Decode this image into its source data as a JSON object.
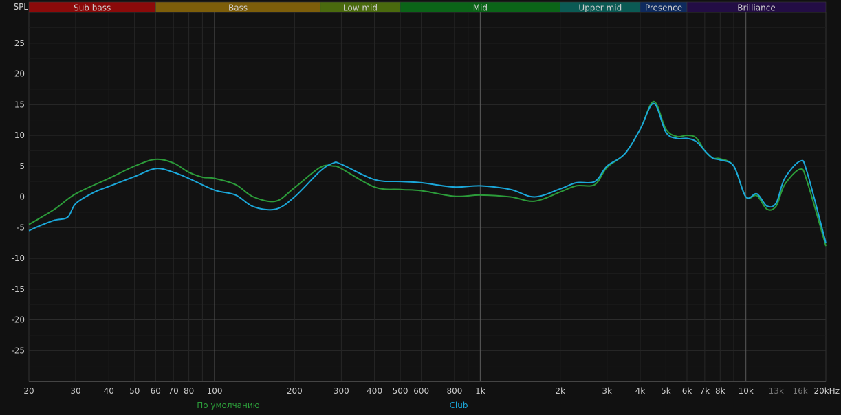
{
  "chart_data": {
    "type": "line",
    "ylabel": "SPL",
    "x_scale": "log",
    "xlim": [
      20,
      20000
    ],
    "ylim": [
      -30,
      30
    ],
    "grid": true,
    "y_ticks": [
      25,
      20,
      15,
      10,
      5,
      0,
      -5,
      -10,
      -15,
      -20,
      -25
    ],
    "x_ticks": [
      {
        "v": 20,
        "label": "20"
      },
      {
        "v": 30,
        "label": "30"
      },
      {
        "v": 40,
        "label": "40"
      },
      {
        "v": 50,
        "label": "50"
      },
      {
        "v": 60,
        "label": "60"
      },
      {
        "v": 70,
        "label": "70"
      },
      {
        "v": 80,
        "label": "80"
      },
      {
        "v": 100,
        "label": "100"
      },
      {
        "v": 200,
        "label": "200"
      },
      {
        "v": 300,
        "label": "300"
      },
      {
        "v": 400,
        "label": "400"
      },
      {
        "v": 500,
        "label": "500"
      },
      {
        "v": 600,
        "label": "600"
      },
      {
        "v": 800,
        "label": "800"
      },
      {
        "v": 1000,
        "label": "1k"
      },
      {
        "v": 2000,
        "label": "2k"
      },
      {
        "v": 3000,
        "label": "3k"
      },
      {
        "v": 4000,
        "label": "4k"
      },
      {
        "v": 5000,
        "label": "5k"
      },
      {
        "v": 6000,
        "label": "6k"
      },
      {
        "v": 7000,
        "label": "7k"
      },
      {
        "v": 8000,
        "label": "8k"
      },
      {
        "v": 10000,
        "label": "10k"
      },
      {
        "v": 13000,
        "label": "13k",
        "dim": true
      },
      {
        "v": 16000,
        "label": "16k",
        "dim": true
      },
      {
        "v": 20000,
        "label": "20kHz"
      }
    ],
    "bands": [
      {
        "label": "Sub bass",
        "from": 20,
        "to": 60,
        "color": "#8b0a0a"
      },
      {
        "label": "Bass",
        "from": 60,
        "to": 250,
        "color": "#7d5e0a"
      },
      {
        "label": "Low mid",
        "from": 250,
        "to": 500,
        "color": "#4a6a0e"
      },
      {
        "label": "Mid",
        "from": 500,
        "to": 2000,
        "color": "#0b6418"
      },
      {
        "label": "Upper mid",
        "from": 2000,
        "to": 4000,
        "color": "#0b5a54"
      },
      {
        "label": "Presence",
        "from": 4000,
        "to": 6000,
        "color": "#0e2a5e"
      },
      {
        "label": "Brilliance",
        "from": 6000,
        "to": 20000,
        "color": "#230d45"
      }
    ],
    "legend_placement": "bottom",
    "series": [
      {
        "name": "По умолчанию",
        "color": "#2c9c3a",
        "x": [
          20,
          25,
          30,
          40,
          50,
          60,
          70,
          80,
          90,
          100,
          120,
          140,
          170,
          200,
          250,
          280,
          300,
          400,
          500,
          600,
          800,
          1000,
          1300,
          1600,
          2000,
          2300,
          2700,
          3000,
          3500,
          4000,
          4500,
          5000,
          5500,
          6000,
          6500,
          7000,
          7500,
          8000,
          9000,
          10000,
          11000,
          12000,
          13000,
          14000,
          16000,
          17000,
          20000
        ],
        "values": [
          -4.5,
          -2,
          0.5,
          3,
          5,
          6.1,
          5.5,
          4,
          3.2,
          3,
          2,
          0,
          -0.7,
          1.5,
          4.8,
          5,
          4.6,
          1.6,
          1.2,
          1,
          0.1,
          0.3,
          0,
          -0.7,
          0.8,
          1.8,
          2,
          4.8,
          7,
          11,
          15.5,
          11,
          9.8,
          10,
          9.6,
          7.5,
          6.3,
          6.2,
          5,
          0,
          0.2,
          -2,
          -1.5,
          2,
          4.5,
          2.5,
          -8
        ]
      },
      {
        "name": "Club",
        "color": "#1ba7d9",
        "x": [
          20,
          22,
          25,
          28,
          30,
          35,
          40,
          50,
          60,
          70,
          80,
          100,
          120,
          140,
          170,
          200,
          250,
          280,
          300,
          400,
          500,
          600,
          800,
          1000,
          1300,
          1600,
          2000,
          2300,
          2700,
          3000,
          3500,
          4000,
          4500,
          5000,
          5500,
          6000,
          6500,
          7000,
          7500,
          8000,
          9000,
          10000,
          11000,
          12000,
          13000,
          14000,
          16000,
          17000,
          20000
        ],
        "values": [
          -5.5,
          -4.7,
          -3.8,
          -3.3,
          -1.1,
          0.7,
          1.7,
          3.3,
          4.6,
          4,
          3,
          1.1,
          0.3,
          -1.6,
          -2,
          0,
          4.2,
          5.5,
          5.3,
          2.8,
          2.5,
          2.3,
          1.6,
          1.8,
          1.2,
          0,
          1.3,
          2.3,
          2.5,
          5,
          7,
          11,
          15.2,
          10.5,
          9.5,
          9.5,
          9,
          7.5,
          6.3,
          6,
          5,
          0,
          0.5,
          -1.5,
          -1,
          3,
          5.8,
          4,
          -7.5
        ]
      }
    ]
  }
}
